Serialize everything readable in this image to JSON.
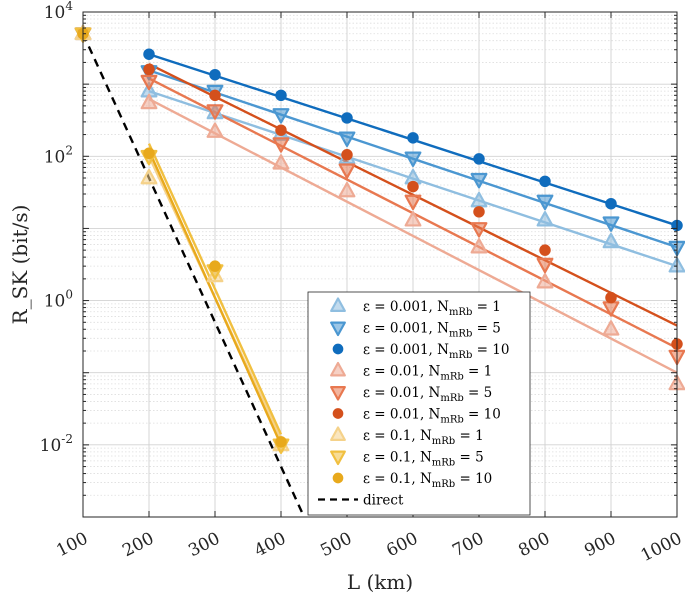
{
  "chart_data": {
    "type": "line",
    "xlabel": "L (km)",
    "ylabel": "R_SK (bit/s)",
    "xlim": [
      100,
      1000
    ],
    "ylim": [
      0.001,
      10000
    ],
    "yscale": "log",
    "grid": true,
    "legend_position": "bottom-right",
    "x_ticks": [
      "100",
      "200",
      "300",
      "400",
      "500",
      "600",
      "700",
      "800",
      "900",
      "1000"
    ],
    "y_ticks": [
      {
        "base": "10",
        "exp": "4",
        "value": 10000
      },
      {
        "base": "10",
        "exp": "2",
        "value": 100
      },
      {
        "base": "10",
        "exp": "0",
        "value": 1
      },
      {
        "base": "10",
        "exp": "-2",
        "value": 0.01
      }
    ],
    "series": [
      {
        "name": "ε = 0.001, N_mRb = 1",
        "label_main": "ε = 0.001, N",
        "label_sub": "mRb",
        "label_tail": " = 1",
        "color": "#8fbee0",
        "opacity": 1,
        "marker": "triangle-up",
        "points": [
          [
            100,
            5000
          ],
          [
            200,
            800
          ],
          [
            300,
            400
          ],
          [
            400,
            200
          ],
          [
            500,
            95
          ],
          [
            600,
            50
          ],
          [
            700,
            24
          ],
          [
            800,
            13
          ],
          [
            900,
            6.5
          ],
          [
            1000,
            3
          ]
        ],
        "fit": [
          [
            200,
            800
          ],
          [
            1000,
            3
          ]
        ]
      },
      {
        "name": "ε = 0.001, N_mRb = 5",
        "label_main": "ε = 0.001, N",
        "label_sub": "mRb",
        "label_tail": " = 5",
        "color": "#4b97d1",
        "opacity": 1,
        "marker": "triangle-down",
        "points": [
          [
            100,
            5000
          ],
          [
            200,
            1500
          ],
          [
            300,
            800
          ],
          [
            400,
            380
          ],
          [
            500,
            180
          ],
          [
            600,
            95
          ],
          [
            700,
            48
          ],
          [
            800,
            24
          ],
          [
            900,
            12
          ],
          [
            1000,
            5.5
          ]
        ],
        "fit": [
          [
            200,
            1550
          ],
          [
            1000,
            5.5
          ]
        ]
      },
      {
        "name": "ε = 0.001, N_mRb = 10",
        "label_main": "ε = 0.001, N",
        "label_sub": "mRb",
        "label_tail": " = 10",
        "color": "#0f6cbd",
        "opacity": 1,
        "marker": "circle",
        "points": [
          [
            100,
            5000
          ],
          [
            200,
            2600
          ],
          [
            300,
            1350
          ],
          [
            400,
            700
          ],
          [
            500,
            340
          ],
          [
            600,
            180
          ],
          [
            700,
            92
          ],
          [
            800,
            45
          ],
          [
            900,
            22
          ],
          [
            1000,
            11
          ]
        ],
        "fit": [
          [
            200,
            2600
          ],
          [
            1000,
            11
          ]
        ]
      },
      {
        "name": "ε = 0.01, N_mRb = 1",
        "label_main": "ε = 0.01, N",
        "label_sub": "mRb",
        "label_tail": " = 1",
        "color": "#eeaa94",
        "opacity": 1,
        "marker": "triangle-up",
        "points": [
          [
            100,
            5000
          ],
          [
            200,
            550
          ],
          [
            300,
            220
          ],
          [
            400,
            80
          ],
          [
            500,
            33
          ],
          [
            600,
            13
          ],
          [
            700,
            5.5
          ],
          [
            800,
            1.8
          ],
          [
            900,
            0.4
          ],
          [
            1000,
            0.07
          ]
        ],
        "fit": [
          [
            200,
            620
          ],
          [
            1000,
            0.1
          ]
        ]
      },
      {
        "name": "ε = 0.01, N_mRb = 5",
        "label_main": "ε = 0.01, N",
        "label_sub": "mRb",
        "label_tail": " = 5",
        "color": "#e87850",
        "opacity": 1,
        "marker": "triangle-down",
        "points": [
          [
            100,
            5000
          ],
          [
            200,
            1100
          ],
          [
            300,
            430
          ],
          [
            400,
            150
          ],
          [
            500,
            65
          ],
          [
            600,
            24
          ],
          [
            700,
            10
          ],
          [
            800,
            3.2
          ],
          [
            900,
            0.8
          ],
          [
            1000,
            0.17
          ]
        ],
        "fit": [
          [
            200,
            1200
          ],
          [
            1000,
            0.22
          ]
        ]
      },
      {
        "name": "ε = 0.01, N_mRb = 10",
        "label_main": "ε = 0.01, N",
        "label_sub": "mRb",
        "label_tail": " = 10",
        "color": "#d4501c",
        "opacity": 1,
        "marker": "circle",
        "points": [
          [
            100,
            5000
          ],
          [
            200,
            1600
          ],
          [
            300,
            700
          ],
          [
            400,
            230
          ],
          [
            500,
            105
          ],
          [
            600,
            38
          ],
          [
            700,
            17
          ],
          [
            800,
            5
          ],
          [
            900,
            1.1
          ],
          [
            1000,
            0.25
          ]
        ],
        "fit": [
          [
            200,
            1900
          ],
          [
            1000,
            0.45
          ]
        ]
      },
      {
        "name": "ε = 0.1, N_mRb = 1",
        "label_main": "ε = 0.1, N",
        "label_sub": "mRb",
        "label_tail": " = 1",
        "color": "#f5d28a",
        "opacity": 1,
        "marker": "triangle-up",
        "points": [
          [
            100,
            5000
          ],
          [
            200,
            50
          ],
          [
            300,
            2.2
          ],
          [
            400,
            0.01
          ]
        ],
        "fit": [
          [
            200,
            100
          ],
          [
            400,
            0.012
          ]
        ]
      },
      {
        "name": "ε = 0.1, N_mRb = 5",
        "label_main": "ε = 0.1, N",
        "label_sub": "mRb",
        "label_tail": " = 5",
        "color": "#f1c040",
        "opacity": 1,
        "marker": "triangle-down",
        "points": [
          [
            100,
            5000
          ],
          [
            200,
            100
          ],
          [
            300,
            2.6
          ],
          [
            400,
            0.01
          ]
        ],
        "fit": [
          [
            200,
            150
          ],
          [
            400,
            0.014
          ]
        ]
      },
      {
        "name": "ε = 0.1, N_mRb = 10",
        "label_main": "ε = 0.1, N",
        "label_sub": "mRb",
        "label_tail": " = 10",
        "color": "#e8a91c",
        "opacity": 1,
        "marker": "circle",
        "points": [
          [
            100,
            5000
          ],
          [
            200,
            110
          ],
          [
            300,
            3
          ],
          [
            400,
            0.011
          ]
        ],
        "fit": [
          [
            200,
            120
          ],
          [
            400,
            0.01
          ]
        ]
      }
    ],
    "reference": {
      "name": "direct",
      "style": "dashed",
      "color": "#000000",
      "points": [
        [
          100,
          5000
        ],
        [
          435,
          0.001
        ]
      ]
    }
  }
}
